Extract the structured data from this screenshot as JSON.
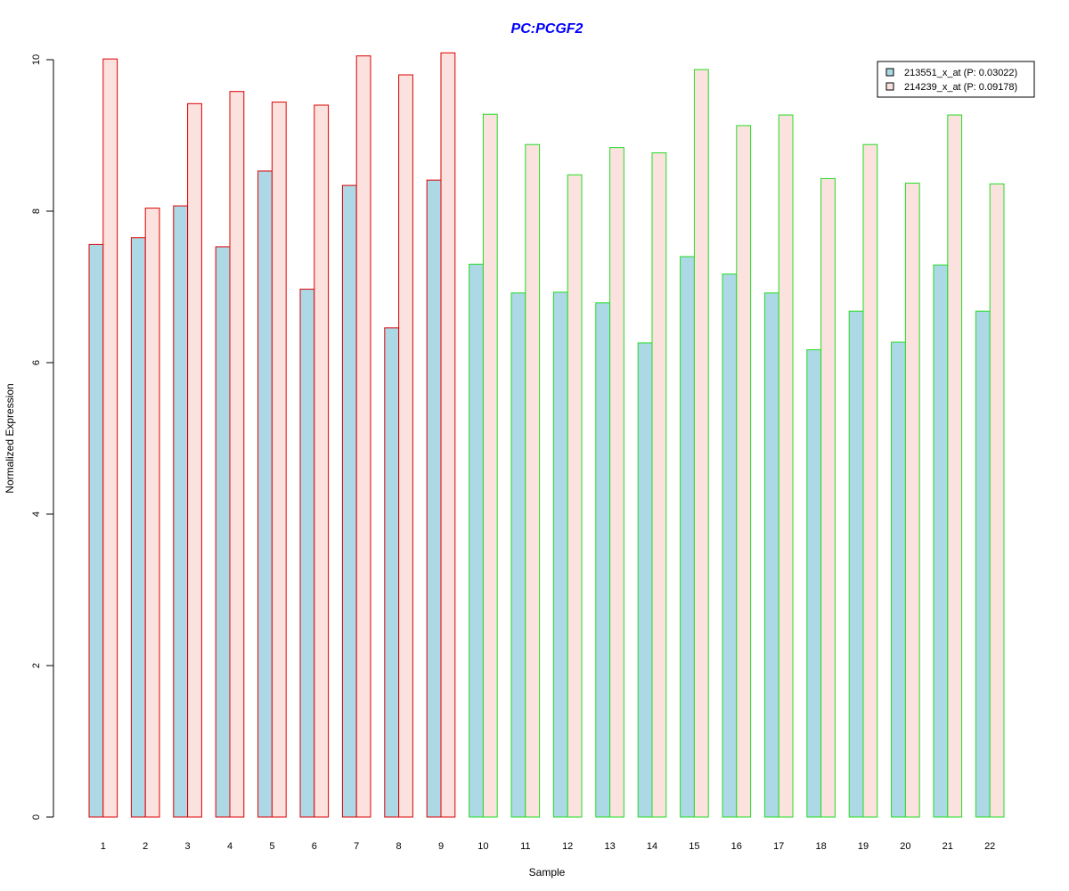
{
  "chart_data": {
    "type": "bar",
    "title": "PC:PCGF2",
    "xlabel": "Sample",
    "ylabel": "Normalized Expression",
    "ylim": [
      0,
      10
    ],
    "yticks": [
      0,
      2,
      4,
      6,
      8,
      10
    ],
    "categories": [
      "1",
      "2",
      "3",
      "4",
      "5",
      "6",
      "7",
      "8",
      "9",
      "10",
      "11",
      "12",
      "13",
      "14",
      "15",
      "16",
      "17",
      "18",
      "19",
      "20",
      "21",
      "22"
    ],
    "group_border_colors": [
      "#dd0000",
      "#dd0000",
      "#dd0000",
      "#dd0000",
      "#dd0000",
      "#dd0000",
      "#dd0000",
      "#dd0000",
      "#dd0000",
      "#22dd22",
      "#22dd22",
      "#22dd22",
      "#22dd22",
      "#22dd22",
      "#22dd22",
      "#22dd22",
      "#22dd22",
      "#22dd22",
      "#22dd22",
      "#22dd22",
      "#22dd22",
      "#22dd22"
    ],
    "series": [
      {
        "name": "213551_x_at (P: 0.03022)",
        "fill": "#add8e6",
        "values": [
          7.56,
          7.65,
          8.07,
          7.53,
          8.53,
          6.97,
          8.34,
          6.46,
          8.41,
          7.3,
          6.92,
          6.93,
          6.79,
          6.26,
          7.4,
          7.17,
          6.92,
          6.17,
          6.68,
          6.27,
          7.29,
          6.68
        ]
      },
      {
        "name": "214239_x_at (P: 0.09178)",
        "fill": "#fbe2df",
        "values": [
          10.01,
          8.04,
          9.42,
          9.58,
          9.44,
          9.4,
          10.05,
          9.8,
          10.09,
          9.28,
          8.88,
          8.48,
          8.84,
          8.77,
          9.87,
          9.13,
          9.27,
          8.43,
          8.88,
          8.37,
          9.27,
          8.36
        ]
      }
    ],
    "legend_position": "top-right",
    "grid": false,
    "title_color": "#0000ff"
  }
}
